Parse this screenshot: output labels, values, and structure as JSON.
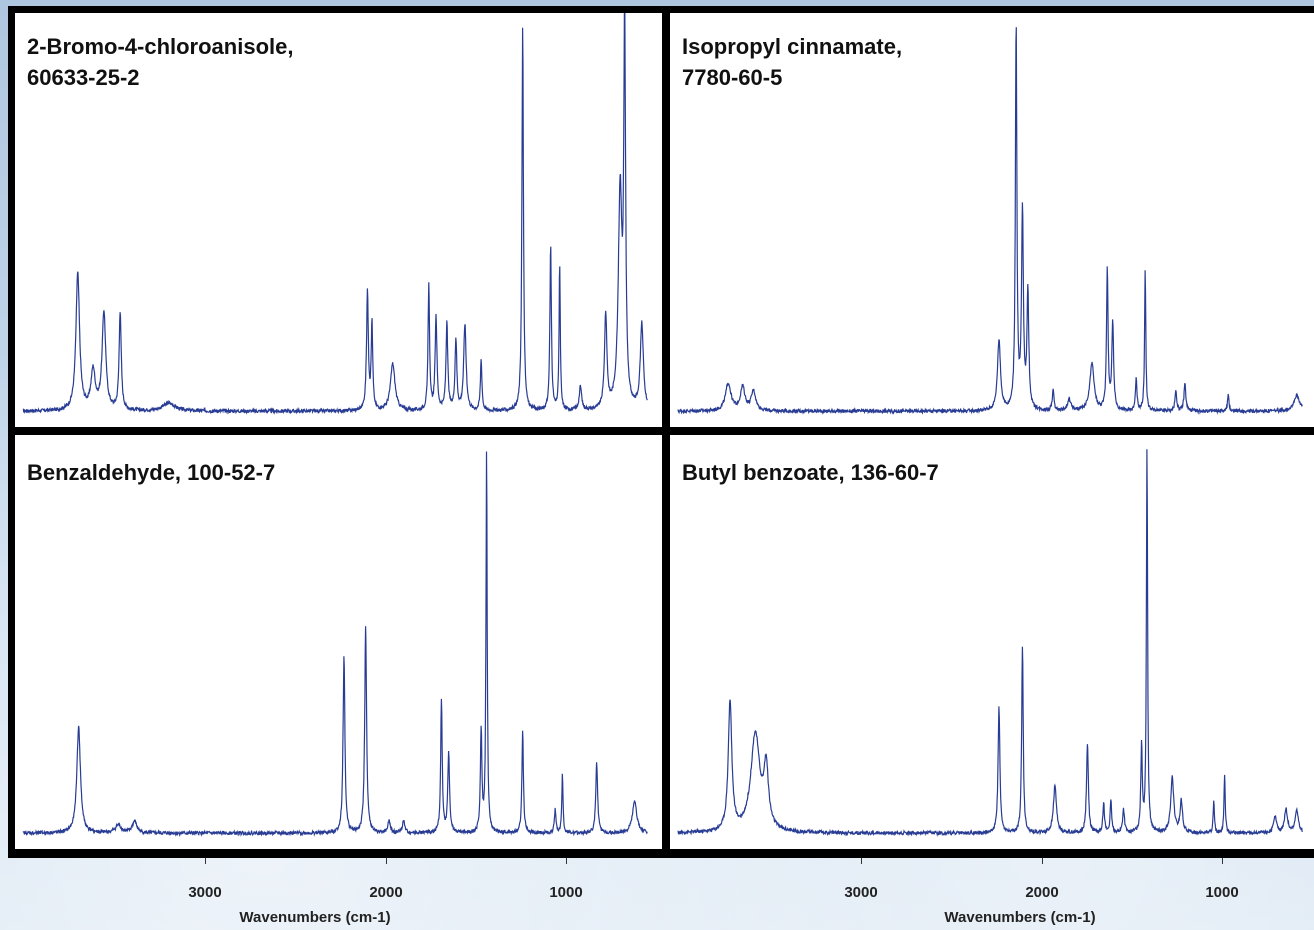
{
  "panels": [
    {
      "title_line1": "2-Bromo-4-chloroanisole,",
      "title_line2": "60633-25-2"
    },
    {
      "title_line1": "Isopropyl cinnamate,",
      "title_line2": "7780-60-5"
    },
    {
      "title_line1": "Benzaldehyde, 100-52-7",
      "title_line2": ""
    },
    {
      "title_line1": "Butyl benzoate, 136-60-7",
      "title_line2": ""
    }
  ],
  "axes": [
    {
      "ticks": [
        "3000",
        "2000",
        "1000"
      ],
      "xlabel": "Wavenumbers (cm-1)"
    },
    {
      "ticks": [
        "3000",
        "2000",
        "1000"
      ],
      "xlabel": "Wavenumbers (cm-1)"
    }
  ],
  "colors": {
    "line": "#283c94",
    "frame": "#000000",
    "panel_bg": "#ffffff"
  },
  "chart_data": [
    {
      "type": "line",
      "title": "2-Bromo-4-chloroanisole, 60633-25-2",
      "xlabel": "Wavenumbers (cm-1)",
      "xlim": [
        3800,
        550
      ],
      "ylim": [
        0,
        100
      ],
      "baseline": 2,
      "peaks": [
        [
          3705,
          35,
          12
        ],
        [
          3620,
          10,
          14
        ],
        [
          3560,
          25,
          12
        ],
        [
          3470,
          25,
          7
        ],
        [
          3200,
          2,
          40
        ],
        [
          2100,
          30,
          6
        ],
        [
          2075,
          22,
          5
        ],
        [
          1960,
          12,
          15
        ],
        [
          1760,
          32,
          5
        ],
        [
          1720,
          24,
          6
        ],
        [
          1660,
          22,
          6
        ],
        [
          1610,
          18,
          6
        ],
        [
          1560,
          22,
          8
        ],
        [
          1470,
          13,
          5
        ],
        [
          1240,
          98,
          5
        ],
        [
          1085,
          42,
          5
        ],
        [
          1035,
          37,
          4
        ],
        [
          920,
          6,
          8
        ],
        [
          780,
          24,
          8
        ],
        [
          700,
          55,
          12
        ],
        [
          675,
          96,
          6
        ],
        [
          580,
          22,
          10
        ]
      ]
    },
    {
      "type": "line",
      "title": "Isopropyl cinnamate, 7780-60-5",
      "xlabel": "Wavenumbers (cm-1)",
      "xlim": [
        3800,
        550
      ],
      "ylim": [
        0,
        100
      ],
      "baseline": 2,
      "peaks": [
        [
          3730,
          7,
          18
        ],
        [
          3650,
          6,
          15
        ],
        [
          3590,
          5,
          15
        ],
        [
          2230,
          18,
          10
        ],
        [
          2135,
          98,
          5
        ],
        [
          2100,
          50,
          6
        ],
        [
          2070,
          30,
          6
        ],
        [
          1930,
          5,
          6
        ],
        [
          1840,
          3,
          10
        ],
        [
          1715,
          12,
          14
        ],
        [
          1630,
          36,
          5
        ],
        [
          1600,
          22,
          6
        ],
        [
          1470,
          8,
          5
        ],
        [
          1420,
          36,
          4
        ],
        [
          1250,
          5,
          6
        ],
        [
          1200,
          7,
          6
        ],
        [
          960,
          4,
          5
        ],
        [
          580,
          4,
          20
        ]
      ]
    },
    {
      "type": "line",
      "title": "Benzaldehyde, 100-52-7",
      "xlabel": "Wavenumbers (cm-1)",
      "xlim": [
        3800,
        550
      ],
      "ylim": [
        0,
        100
      ],
      "baseline": 2,
      "peaks": [
        [
          3700,
          27,
          12
        ],
        [
          3480,
          2,
          20
        ],
        [
          3390,
          3,
          15
        ],
        [
          2230,
          45,
          6
        ],
        [
          2110,
          53,
          6
        ],
        [
          1980,
          3,
          8
        ],
        [
          1900,
          3,
          8
        ],
        [
          1690,
          34,
          5
        ],
        [
          1650,
          20,
          6
        ],
        [
          1470,
          26,
          5
        ],
        [
          1440,
          97,
          4
        ],
        [
          1240,
          26,
          5
        ],
        [
          1060,
          6,
          5
        ],
        [
          1020,
          15,
          4
        ],
        [
          830,
          18,
          6
        ],
        [
          620,
          8,
          15
        ]
      ]
    },
    {
      "type": "line",
      "title": "Butyl benzoate, 136-60-7",
      "xlabel": "Wavenumbers (cm-1)",
      "xlim": [
        3800,
        550
      ],
      "ylim": [
        0,
        100
      ],
      "baseline": 2,
      "peaks": [
        [
          3720,
          33,
          12
        ],
        [
          3580,
          25,
          30
        ],
        [
          3520,
          15,
          15
        ],
        [
          2230,
          32,
          6
        ],
        [
          2100,
          48,
          5
        ],
        [
          1920,
          12,
          10
        ],
        [
          1740,
          23,
          6
        ],
        [
          1650,
          8,
          5
        ],
        [
          1610,
          8,
          5
        ],
        [
          1540,
          6,
          6
        ],
        [
          1440,
          22,
          5
        ],
        [
          1410,
          98,
          4
        ],
        [
          1270,
          14,
          10
        ],
        [
          1220,
          8,
          8
        ],
        [
          1040,
          8,
          4
        ],
        [
          980,
          15,
          4
        ],
        [
          700,
          4,
          10
        ],
        [
          640,
          6,
          10
        ],
        [
          580,
          6,
          10
        ]
      ]
    }
  ]
}
